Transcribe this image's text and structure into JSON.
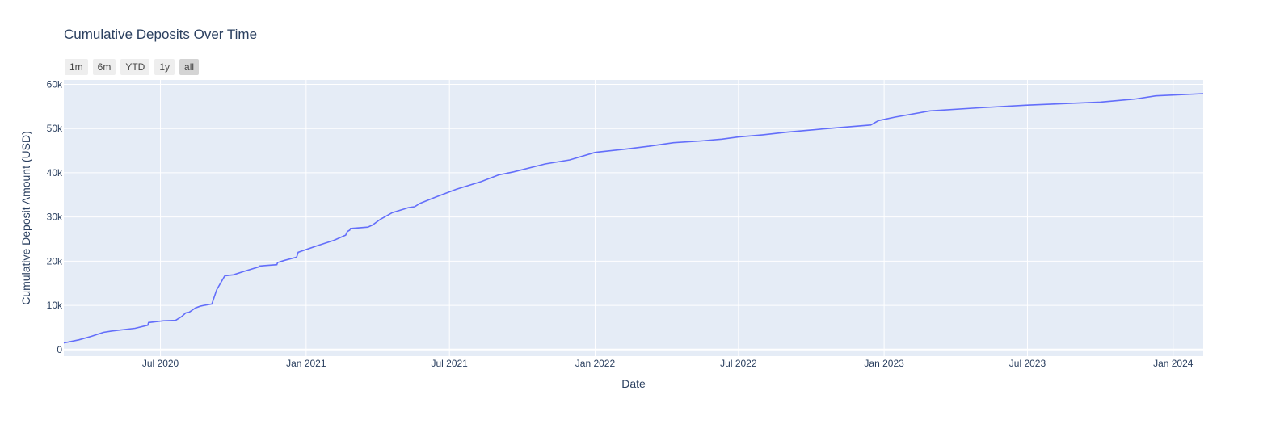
{
  "chart_data": {
    "type": "line",
    "title": "Cumulative Deposits Over Time",
    "xlabel": "Date",
    "ylabel": "Cumulative Deposit Amount (USD)",
    "x_range": [
      "2020-03-01",
      "2024-02-08"
    ],
    "ylim": [
      -1500,
      61000
    ],
    "x_ticks": [
      {
        "date": "2020-07-01",
        "label": "Jul 2020"
      },
      {
        "date": "2021-01-01",
        "label": "Jan 2021"
      },
      {
        "date": "2021-07-01",
        "label": "Jul 2021"
      },
      {
        "date": "2022-01-01",
        "label": "Jan 2022"
      },
      {
        "date": "2022-07-01",
        "label": "Jul 2022"
      },
      {
        "date": "2023-01-01",
        "label": "Jan 2023"
      },
      {
        "date": "2023-07-01",
        "label": "Jul 2023"
      },
      {
        "date": "2024-01-01",
        "label": "Jan 2024"
      }
    ],
    "y_ticks": [
      {
        "value": 0,
        "label": "0"
      },
      {
        "value": 10000,
        "label": "10k"
      },
      {
        "value": 20000,
        "label": "20k"
      },
      {
        "value": 30000,
        "label": "30k"
      },
      {
        "value": 40000,
        "label": "40k"
      },
      {
        "value": 50000,
        "label": "50k"
      },
      {
        "value": 60000,
        "label": "60k"
      }
    ],
    "grid": true,
    "line_color": "#636efa",
    "plot_bg": "#e5ecf6",
    "series": [
      {
        "x": [
          "2020-03-01",
          "2020-03-20",
          "2020-04-05",
          "2020-04-20",
          "2020-05-01",
          "2020-05-30",
          "2020-06-15",
          "2020-06-16",
          "2020-06-25",
          "2020-07-05",
          "2020-07-20",
          "2020-07-28",
          "2020-08-02",
          "2020-08-06",
          "2020-08-10",
          "2020-08-14",
          "2020-08-20",
          "2020-08-25",
          "2020-09-04",
          "2020-09-10",
          "2020-09-20",
          "2020-09-21",
          "2020-10-01",
          "2020-10-15",
          "2020-11-02",
          "2020-11-03",
          "2020-11-10",
          "2020-11-25",
          "2020-11-26",
          "2020-12-05",
          "2020-12-20",
          "2020-12-22",
          "2021-01-15",
          "2021-02-05",
          "2021-02-20",
          "2021-02-22",
          "2021-02-25",
          "2021-02-26",
          "2021-03-20",
          "2021-03-26",
          "2021-04-05",
          "2021-04-20",
          "2021-05-05",
          "2021-05-10",
          "2021-05-18",
          "2021-05-25",
          "2021-06-15",
          "2021-07-10",
          "2021-08-10",
          "2021-09-01",
          "2021-09-20",
          "2021-10-30",
          "2021-11-30",
          "2022-01-01",
          "2022-02-10",
          "2022-03-10",
          "2022-04-10",
          "2022-05-15",
          "2022-06-10",
          "2022-07-01",
          "2022-08-01",
          "2022-09-01",
          "2022-10-15",
          "2022-12-15",
          "2022-12-25",
          "2023-01-15",
          "2023-02-28",
          "2023-05-01",
          "2023-07-01",
          "2023-10-01",
          "2023-11-15",
          "2023-12-10",
          "2024-02-08"
        ],
        "y": [
          1500,
          2200,
          3000,
          3900,
          4200,
          4800,
          5500,
          6100,
          6300,
          6500,
          6600,
          7500,
          8300,
          8400,
          8900,
          9400,
          9800,
          10000,
          10300,
          13500,
          16600,
          16700,
          16900,
          17700,
          18700,
          18900,
          19000,
          19200,
          19700,
          20200,
          20900,
          22000,
          23500,
          24700,
          25900,
          26700,
          27000,
          27400,
          27700,
          28200,
          29500,
          31000,
          31800,
          32100,
          32300,
          33100,
          34600,
          36300,
          38000,
          39500,
          40200,
          42000,
          42900,
          44600,
          45400,
          46000,
          46800,
          47200,
          47600,
          48100,
          48600,
          49200,
          49900,
          50800,
          51800,
          52600,
          54000,
          54700,
          55300,
          56000,
          56700,
          57400,
          57900
        ]
      }
    ]
  },
  "range_selector": {
    "buttons": [
      {
        "label": "1m",
        "active": false
      },
      {
        "label": "6m",
        "active": false
      },
      {
        "label": "YTD",
        "active": false
      },
      {
        "label": "1y",
        "active": false
      },
      {
        "label": "all",
        "active": true
      }
    ]
  }
}
